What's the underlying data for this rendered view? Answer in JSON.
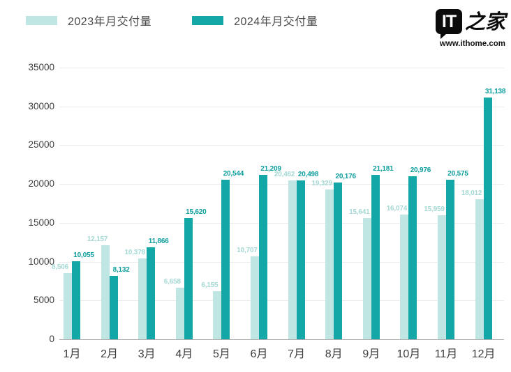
{
  "legend": {
    "items_note": "legend labels are bound from chart_data.series names"
  },
  "logo": {
    "bubble_text": "IT",
    "script_text": "之家",
    "url_text": "www.ithome.com"
  },
  "y_axis": {
    "ticks": [
      0,
      5000,
      10000,
      15000,
      20000,
      25000,
      30000,
      35000
    ]
  },
  "chart_data": {
    "type": "bar",
    "categories": [
      "1月",
      "2月",
      "3月",
      "4月",
      "5月",
      "6月",
      "7月",
      "8月",
      "9月",
      "10月",
      "11月",
      "12月"
    ],
    "series": [
      {
        "name": "2023年月交付量",
        "color": "#bfe6e2",
        "label_color": "#a6d9d4",
        "values": [
          8506,
          12157,
          10378,
          6658,
          6155,
          10707,
          20462,
          19329,
          15641,
          16074,
          15959,
          18012
        ]
      },
      {
        "name": "2024年月交付量",
        "color": "#13a7a7",
        "label_color": "#0f9e9e",
        "values": [
          10055,
          8132,
          11866,
          15620,
          20544,
          21209,
          20498,
          20176,
          21181,
          20976,
          20575,
          31138
        ]
      }
    ],
    "title": "",
    "xlabel": "",
    "ylabel": "",
    "ylim": [
      0,
      35000
    ],
    "grid": true,
    "value_labels": true,
    "legend_position": "top-left",
    "grid_color": "#ebebeb",
    "baseline_color": "#aeaeae"
  }
}
